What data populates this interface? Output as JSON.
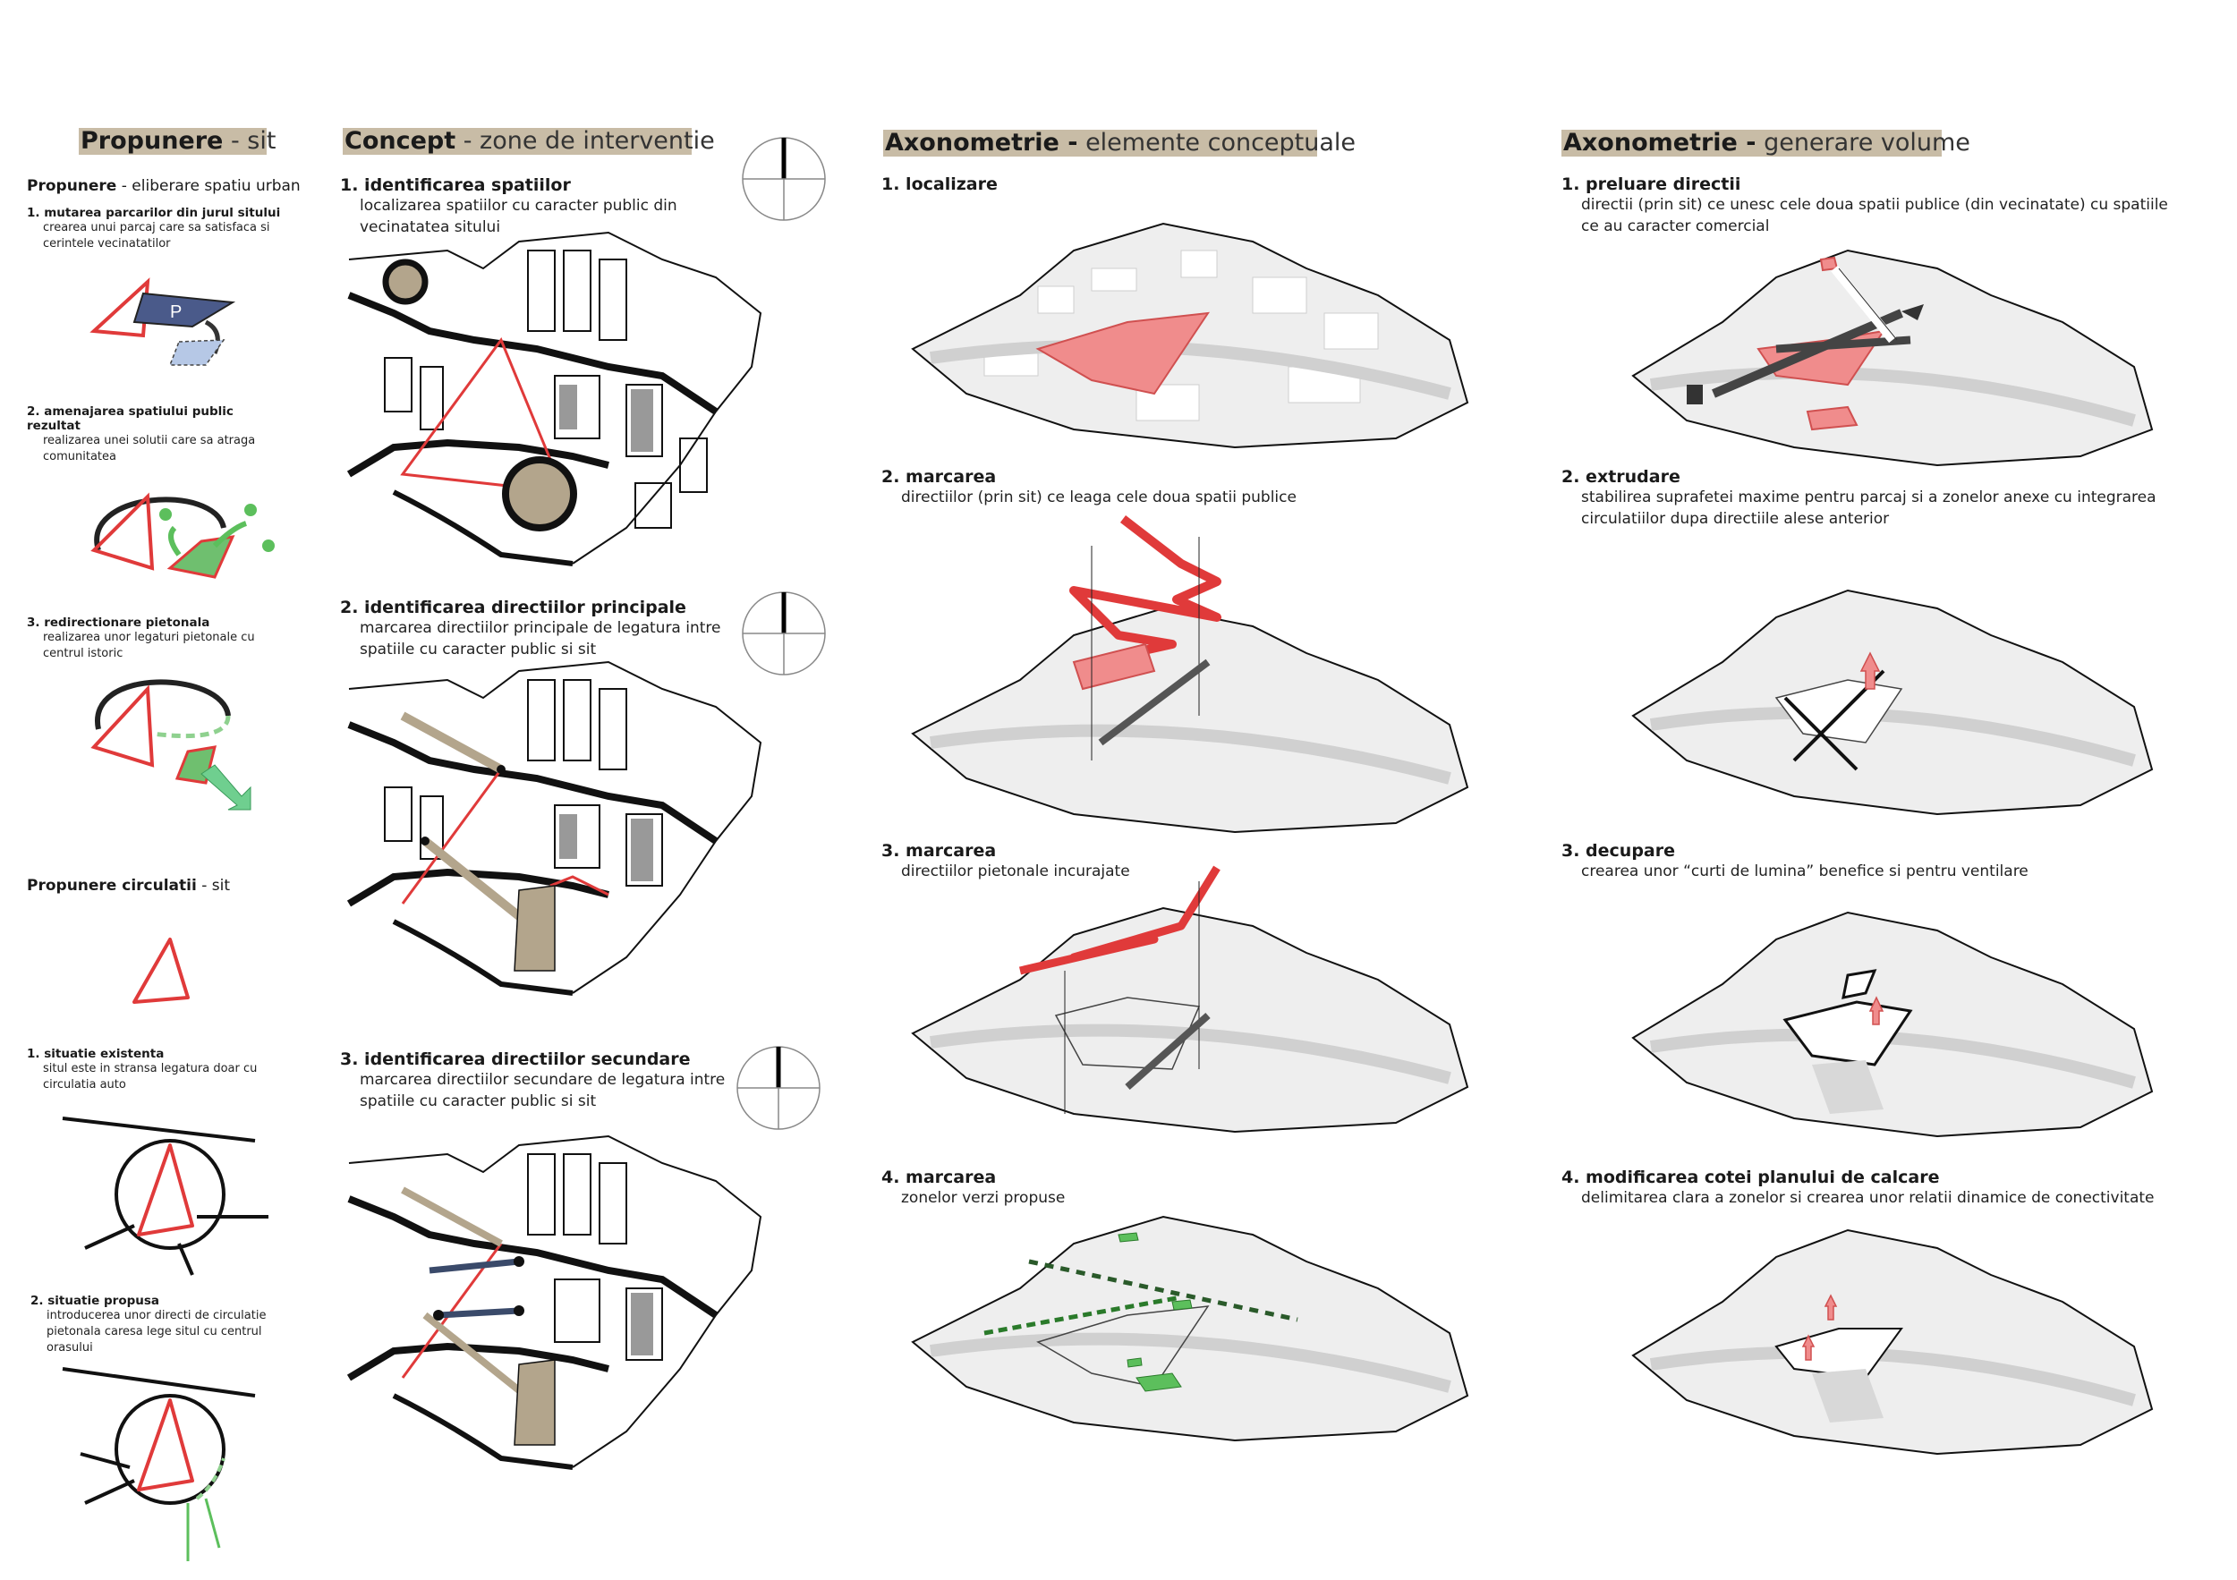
{
  "col1": {
    "header_bold": "Propunere",
    "header_thin": " - sit",
    "subhead_bold": "Propunere",
    "subhead_thin": " - eliberare spatiu urban",
    "items": [
      {
        "title": "1. mutarea parcarilor din jurul sitului",
        "desc": "crearea unui parcaj care sa satisfaca si cerintele vecinatatilor",
        "label": "P"
      },
      {
        "title": "2. amenajarea spatiului public rezultat",
        "desc": "realizarea unei solutii care sa atraga comunitatea"
      },
      {
        "title": "3. redirectionare pietonala",
        "desc": "realizarea unor legaturi pietonale cu centrul istoric"
      }
    ],
    "circ_header_bold": "Propunere circulatii",
    "circ_header_thin": " - sit",
    "circ_items": [
      {
        "title": "1. situatie existenta",
        "desc": "situl este in stransa legatura doar cu circulatia auto"
      },
      {
        "title": "2. situatie propusa",
        "desc": "introducerea unor directi de circulatie pietonala caresa lege situl cu centrul orasului"
      }
    ]
  },
  "col2": {
    "header_bold": "Concept",
    "header_thin": " - zone de interventie",
    "items": [
      {
        "title": "1. identificarea spatiilor",
        "desc": "localizarea spatiilor cu caracter public din vecinatatea sitului"
      },
      {
        "title": "2. identificarea directiilor principale",
        "desc": "marcarea directiilor principale de legatura intre spatiile cu caracter public si sit"
      },
      {
        "title": "3. identificarea directiilor secundare",
        "desc": "marcarea directiilor secundare de legatura intre spatiile cu caracter public si sit"
      }
    ]
  },
  "col3": {
    "header_bold": "Axonometrie -",
    "header_thin": " elemente conceptuale",
    "items": [
      {
        "title": "1. localizare",
        "desc": ""
      },
      {
        "title": "2. marcarea",
        "desc": "directiilor (prin sit) ce leaga cele doua spatii publice"
      },
      {
        "title": "3. marcarea",
        "desc": "directiilor pietonale incurajate"
      },
      {
        "title": "4. marcarea",
        "desc": "zonelor verzi propuse"
      }
    ]
  },
  "col4": {
    "header_bold": "Axonometrie -",
    "header_thin": " generare volume",
    "items": [
      {
        "title": "1. preluare directii",
        "desc": "directii (prin sit) ce unesc cele doua spatii publice (din vecinatate) cu spatiile ce au caracter comercial"
      },
      {
        "title": "2. extrudare",
        "desc": "stabilirea suprafetei maxime pentru parcaj si a zonelor anexe cu integrarea circulatiilor dupa directiile alese anterior"
      },
      {
        "title": "3. decupare",
        "desc": "crearea unor “curti de lumina” benefice si pentru ventilare"
      },
      {
        "title": "4. modificarea cotei planului de calcare",
        "desc": "delimitarea clara a zonelor si crearea unor relatii dinamice de conectivitate"
      }
    ]
  },
  "colors": {
    "red": "#e03a3a",
    "pink": "#f08c8c",
    "green": "#5cbf5c",
    "tan": "#b3a58c",
    "band": "#c8bca6",
    "navy": "#4a5a8a"
  }
}
